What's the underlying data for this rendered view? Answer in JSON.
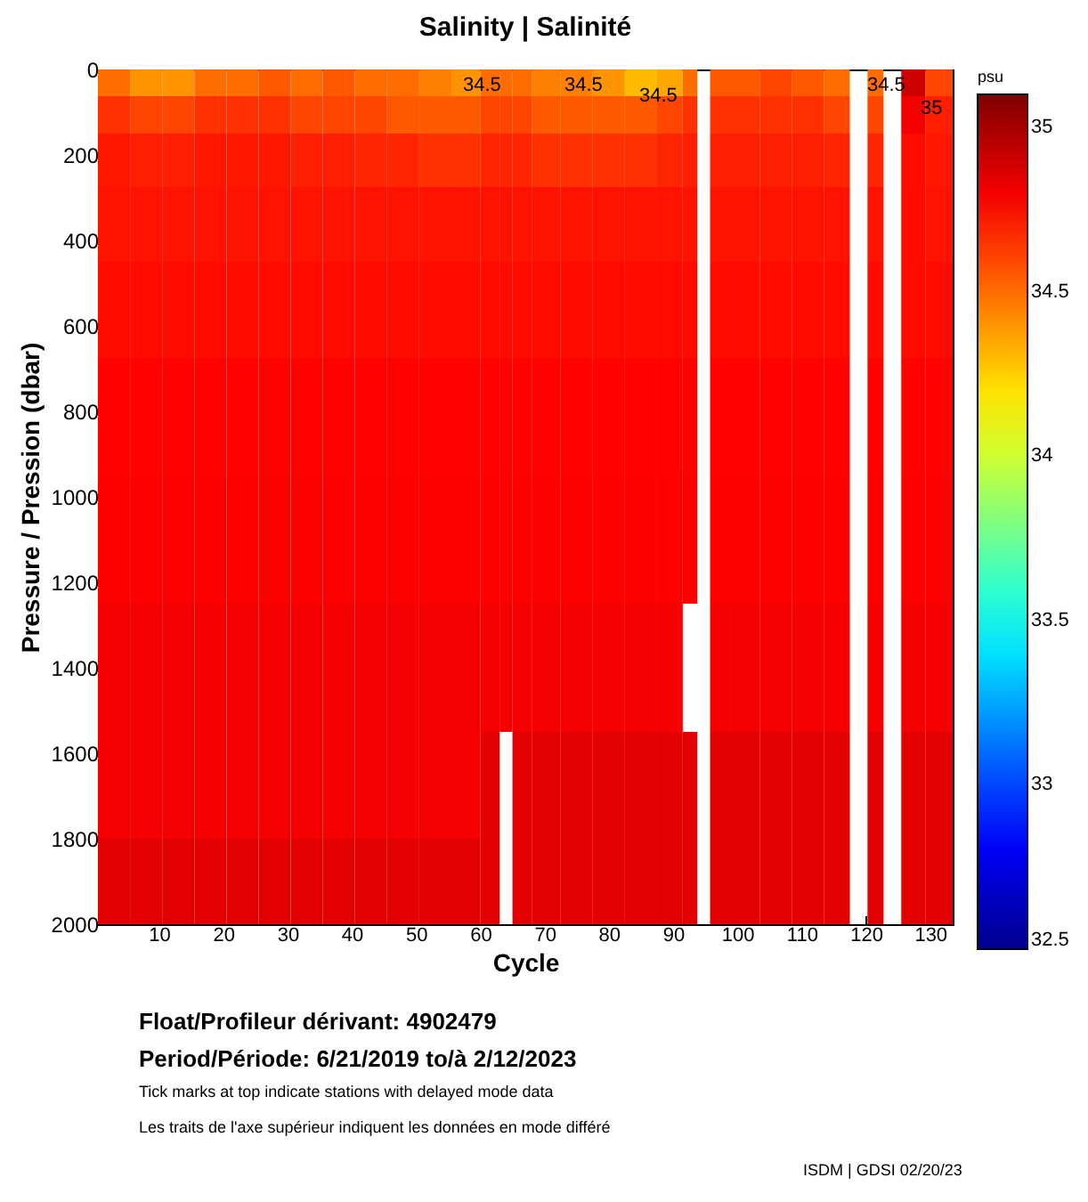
{
  "chart_data": {
    "type": "heatmap",
    "title": "Salinity | Salinité",
    "xlabel": "Cycle",
    "ylabel": "Pressure / Pression (dbar)",
    "clabel": "psu",
    "x": [
      3,
      8,
      13,
      18,
      23,
      28,
      33,
      38,
      43,
      48,
      53,
      58,
      62,
      64,
      66,
      70,
      75,
      80,
      85,
      90,
      93,
      94.5,
      97,
      101,
      106,
      111,
      116,
      119,
      121.5,
      124,
      127,
      131.5
    ],
    "y": [
      25,
      100,
      200,
      350,
      550,
      800,
      1100,
      1400,
      1700,
      1900
    ],
    "cells": [
      [
        34.5,
        34.4,
        34.4,
        34.5,
        34.5,
        34.55,
        34.5,
        34.55,
        34.5,
        34.5,
        34.45,
        34.4,
        34.5,
        34.5,
        34.5,
        34.45,
        34.45,
        34.4,
        34.3,
        34.35,
        34.5,
        null,
        34.55,
        34.55,
        34.6,
        34.55,
        34.5,
        null,
        34.5,
        null,
        34.9,
        34.6
      ],
      [
        34.65,
        34.6,
        34.6,
        34.65,
        34.65,
        34.65,
        34.6,
        34.6,
        34.6,
        34.55,
        34.55,
        34.55,
        34.6,
        34.6,
        34.6,
        34.55,
        34.55,
        34.55,
        34.55,
        34.6,
        34.65,
        null,
        34.65,
        34.65,
        34.65,
        34.65,
        34.6,
        null,
        34.6,
        null,
        34.8,
        34.7
      ],
      [
        34.72,
        34.7,
        34.7,
        34.72,
        34.72,
        34.72,
        34.7,
        34.7,
        34.68,
        34.68,
        34.65,
        34.65,
        34.68,
        34.68,
        34.68,
        34.65,
        34.65,
        34.65,
        34.65,
        34.68,
        34.7,
        null,
        34.7,
        34.7,
        34.7,
        34.7,
        34.68,
        null,
        34.68,
        null,
        34.75,
        34.72
      ],
      [
        34.73,
        34.73,
        34.73,
        34.73,
        34.73,
        34.73,
        34.73,
        34.73,
        34.73,
        34.73,
        34.73,
        34.73,
        34.73,
        34.73,
        34.73,
        34.73,
        34.73,
        34.73,
        34.73,
        34.73,
        34.73,
        null,
        34.73,
        34.73,
        34.73,
        34.73,
        34.73,
        null,
        34.73,
        null,
        34.75,
        34.73
      ],
      [
        34.75,
        34.75,
        34.75,
        34.75,
        34.75,
        34.75,
        34.75,
        34.75,
        34.75,
        34.75,
        34.75,
        34.75,
        34.75,
        34.75,
        34.75,
        34.75,
        34.75,
        34.75,
        34.75,
        34.75,
        34.75,
        null,
        34.75,
        34.75,
        34.75,
        34.75,
        34.75,
        null,
        34.75,
        null,
        34.75,
        34.75
      ],
      [
        34.77,
        34.77,
        34.77,
        34.77,
        34.77,
        34.77,
        34.77,
        34.77,
        34.77,
        34.77,
        34.77,
        34.77,
        34.77,
        34.77,
        34.77,
        34.77,
        34.77,
        34.77,
        34.77,
        34.77,
        34.77,
        null,
        34.77,
        34.77,
        34.77,
        34.77,
        34.77,
        null,
        34.77,
        null,
        34.77,
        34.77
      ],
      [
        34.78,
        34.78,
        34.78,
        34.78,
        34.78,
        34.78,
        34.78,
        34.78,
        34.78,
        34.78,
        34.78,
        34.78,
        34.78,
        34.78,
        34.78,
        34.78,
        34.78,
        34.78,
        34.78,
        34.78,
        34.78,
        null,
        34.78,
        34.78,
        34.78,
        34.78,
        34.78,
        null,
        34.78,
        null,
        34.78,
        34.78
      ],
      [
        34.8,
        34.8,
        34.8,
        34.8,
        34.8,
        34.8,
        34.8,
        34.8,
        34.8,
        34.8,
        34.8,
        34.8,
        34.8,
        34.8,
        34.8,
        34.8,
        34.8,
        34.8,
        34.8,
        34.8,
        null,
        null,
        34.8,
        34.8,
        34.8,
        34.8,
        34.8,
        null,
        34.8,
        null,
        34.8,
        34.8
      ],
      [
        34.8,
        34.8,
        34.8,
        34.8,
        34.8,
        34.8,
        34.8,
        34.8,
        34.8,
        34.8,
        34.8,
        34.8,
        34.85,
        null,
        34.85,
        34.85,
        34.85,
        34.85,
        34.85,
        34.85,
        34.85,
        null,
        34.85,
        34.85,
        34.85,
        34.85,
        34.85,
        null,
        34.85,
        null,
        34.85,
        34.85
      ],
      [
        34.85,
        34.85,
        34.85,
        34.85,
        34.85,
        34.85,
        34.85,
        34.85,
        34.85,
        34.85,
        34.85,
        34.85,
        34.85,
        null,
        34.85,
        34.85,
        34.85,
        34.85,
        34.85,
        34.85,
        34.85,
        null,
        34.85,
        34.85,
        34.85,
        34.85,
        34.85,
        null,
        34.85,
        null,
        34.85,
        34.85
      ]
    ],
    "colors": [
      "#00008f",
      "#0000ff",
      "#0080ff",
      "#00ffff",
      "#80ff80",
      "#ffff00",
      "#ff8000",
      "#ff0000",
      "#800000"
    ],
    "xlim": [
      0.5,
      133.5
    ],
    "xticks": [
      10,
      20,
      30,
      40,
      50,
      60,
      70,
      80,
      90,
      100,
      110,
      120,
      130
    ],
    "ylim": [
      2000,
      0
    ],
    "yticks": [
      0,
      200,
      400,
      600,
      800,
      {
        "value": 1000,
        "label": "1000"
      },
      {
        "value": 1200,
        "label": "1200"
      },
      {
        "value": 1400,
        "label": "1400"
      },
      {
        "value": 1600,
        "label": "1600"
      },
      {
        "value": 1800,
        "label": "1800"
      },
      {
        "value": 2000,
        "label": "2000"
      }
    ],
    "clim": [
      32.5,
      35.1
    ],
    "cticks": [
      32.5,
      33,
      33.5,
      34,
      34.5,
      35
    ],
    "annotations": [
      "34.5",
      "34.5",
      "34.5",
      "34.5",
      "35",
      "Float/Profileur dérivant: 4902479",
      "Period/Période: 6/21/2019 to/à 2/12/2023",
      "Tick marks at top indicate stations with delayed mode data",
      "Les traits de l'axe supérieur indiquent les données en mode différé",
      "ISDM | GDSI 02/20/23"
    ]
  }
}
